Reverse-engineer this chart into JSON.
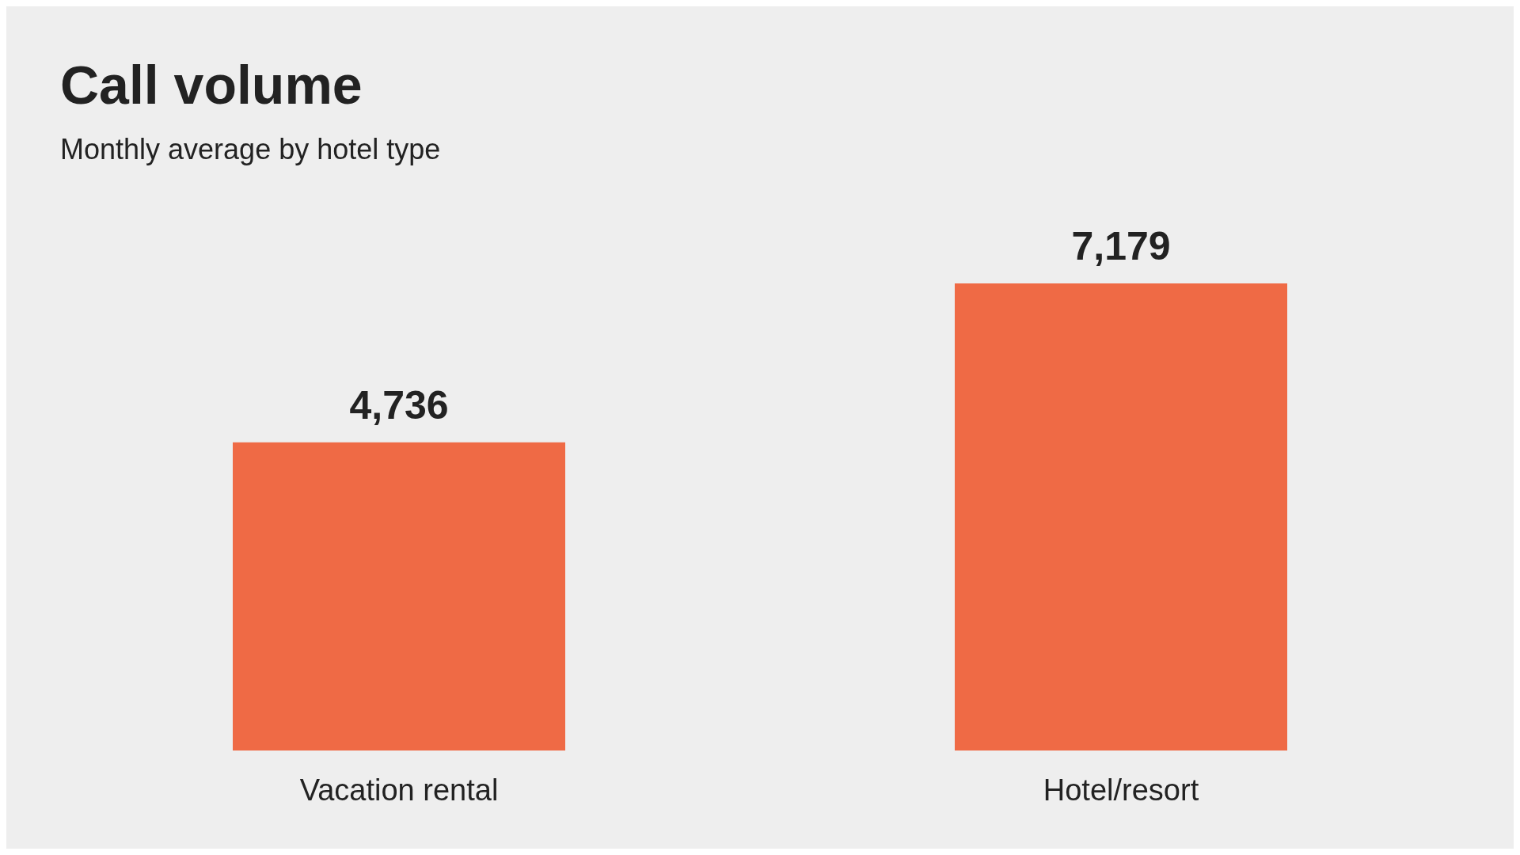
{
  "chart_data": {
    "type": "bar",
    "title": "Call volume",
    "subtitle": "Monthly average by hotel type",
    "categories": [
      "Vacation rental",
      "Hotel/resort"
    ],
    "values": [
      4736,
      7179
    ],
    "value_labels": [
      "4,736",
      "7,179"
    ],
    "color": "#ef6a45"
  }
}
